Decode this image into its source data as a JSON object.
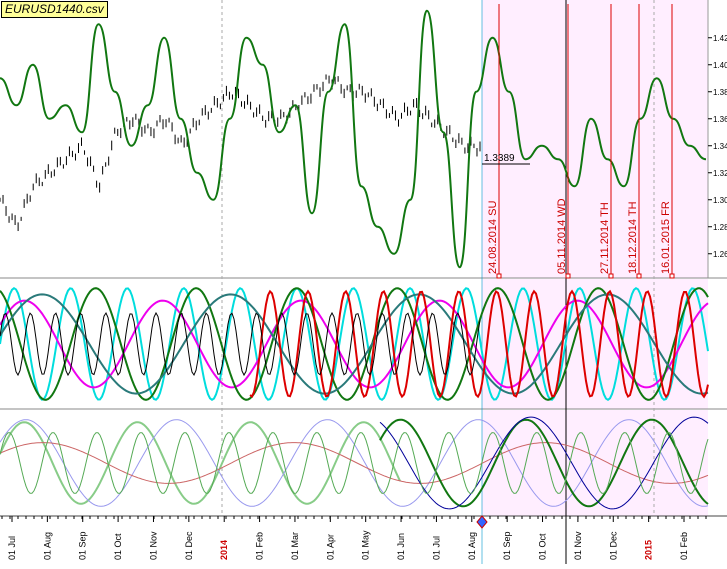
{
  "window": {
    "title": "EURUSD1440.csv"
  },
  "chart_data": {
    "type": "line",
    "title": "EURUSD1440.csv",
    "price_axis": {
      "ticks": [
        "1.42",
        "1.40",
        "1.38",
        "1.36",
        "1.34",
        "1.32",
        "1.30",
        "1.28",
        "1.26"
      ],
      "values": [
        1.42,
        1.4,
        1.38,
        1.36,
        1.34,
        1.32,
        1.3,
        1.28,
        1.26
      ],
      "ylim": [
        1.245,
        1.445
      ]
    },
    "time_axis": {
      "labels": [
        "01 Jul",
        "01 Aug",
        "01 Sep",
        "01 Oct",
        "01 Nov",
        "01 Dec",
        "2014",
        "01 Feb",
        "01 Mar",
        "01 Apr",
        "01 May",
        "01 Jun",
        "01 Jul",
        "01 Aug",
        "01 Sep",
        "01 Oct",
        "01 Nov",
        "01 Dec",
        "2015",
        "01 Feb"
      ]
    },
    "last_price": {
      "label": "1.3389",
      "value": 1.3389
    },
    "forecast_markers": [
      {
        "label": "24.08.2014 SU"
      },
      {
        "label": "05.11.2014 WD"
      },
      {
        "label": "27.11.2014 TH"
      },
      {
        "label": "18.12.2014 TH"
      },
      {
        "label": "16.01.2015 FR"
      }
    ],
    "series": [
      {
        "values": [
          1.39,
          1.37,
          1.4,
          1.36,
          1.37,
          1.35,
          1.43,
          1.38,
          1.34,
          1.37,
          1.42,
          1.36,
          1.32,
          1.3,
          1.36,
          1.42,
          1.4,
          1.35,
          1.37,
          1.29,
          1.38,
          1.43,
          1.31,
          1.28,
          1.26,
          1.3,
          1.44,
          1.35,
          1.25,
          1.38,
          1.42,
          1.38,
          1.33,
          1.34,
          1.33,
          1.31,
          1.36,
          1.33,
          1.31,
          1.36,
          1.39,
          1.36,
          1.34,
          1.33
        ]
      },
      {
        "values": [
          1.3,
          1.28,
          1.31,
          1.32,
          1.33,
          1.34,
          1.31,
          1.35,
          1.36,
          1.35,
          1.36,
          1.34,
          1.36,
          1.37,
          1.38,
          1.37,
          1.36,
          1.36,
          1.37,
          1.38,
          1.39,
          1.38,
          1.38,
          1.37,
          1.36,
          1.37,
          1.36,
          1.35,
          1.34,
          1.339
        ]
      }
    ],
    "oscillator_panels": 2
  }
}
